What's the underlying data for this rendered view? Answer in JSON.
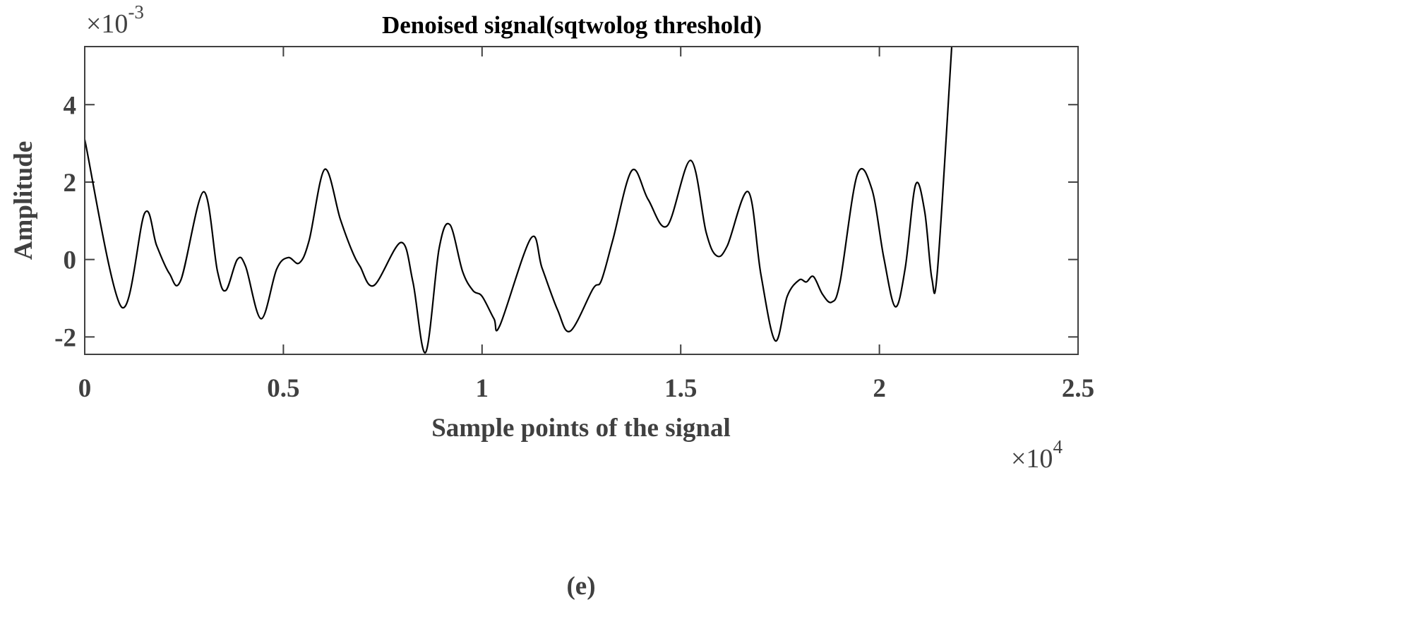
{
  "chart_data": {
    "type": "line",
    "title": "Denoised signal(sqtwolog threshold)",
    "xlabel": "Sample points of the signal",
    "ylabel": "Amplitude",
    "caption": "(e)",
    "x_multiplier_label": {
      "base": "×10",
      "exp": "4"
    },
    "y_multiplier_label": {
      "base": "×10",
      "exp": "-3"
    },
    "xlim": [
      0,
      2.5
    ],
    "ylim": [
      -2.45,
      5.5
    ],
    "xticks": [
      0,
      0.5,
      1,
      1.5,
      2,
      2.5
    ],
    "xtick_labels": [
      "0",
      "0.5",
      "1",
      "1.5",
      "2",
      "2.5"
    ],
    "yticks": [
      -2,
      0,
      2,
      4
    ],
    "ytick_labels": [
      "-2",
      "0",
      "2",
      "4"
    ],
    "grid": false,
    "line_color": "#000000",
    "axis_color": "#404040",
    "series": [
      {
        "x": [
          0,
          0.092,
          0.151,
          0.181,
          0.213,
          0.242,
          0.299,
          0.334,
          0.355,
          0.384,
          0.405,
          0.444,
          0.483,
          0.512,
          0.54,
          0.565,
          0.604,
          0.643,
          0.672,
          0.693,
          0.728,
          0.796,
          0.826,
          0.858,
          0.892,
          0.919,
          0.951,
          0.977,
          1.0,
          1.03,
          1.045,
          1.123,
          1.151,
          1.19,
          1.222,
          1.279,
          1.3,
          1.329,
          1.377,
          1.418,
          1.466,
          1.525,
          1.564,
          1.59,
          1.617,
          1.67,
          1.702,
          1.738,
          1.768,
          1.798,
          1.816,
          1.834,
          1.857,
          1.88,
          1.901,
          1.944,
          1.981,
          2.011,
          2.04,
          2.065,
          2.091,
          2.114,
          2.132,
          2.146,
          2.182,
          2.19
        ],
        "y": [
          3.1,
          -1.22,
          1.2,
          0.36,
          -0.36,
          -0.53,
          1.75,
          -0.3,
          -0.8,
          0.0,
          -0.18,
          -1.53,
          -0.25,
          0.05,
          -0.09,
          0.5,
          2.33,
          1.05,
          0.24,
          -0.18,
          -0.67,
          0.44,
          -0.58,
          -2.4,
          0.29,
          0.9,
          -0.31,
          -0.8,
          -0.95,
          -1.53,
          -1.7,
          0.55,
          -0.22,
          -1.3,
          -1.85,
          -0.76,
          -0.55,
          0.5,
          2.3,
          1.55,
          0.87,
          2.56,
          0.7,
          0.1,
          0.35,
          1.75,
          -0.4,
          -2.1,
          -0.95,
          -0.53,
          -0.58,
          -0.44,
          -0.9,
          -1.1,
          -0.58,
          2.18,
          1.82,
          0.05,
          -1.22,
          -0.22,
          1.93,
          1.24,
          -0.49,
          -0.3,
          5.5,
          7.0
        ]
      }
    ]
  }
}
